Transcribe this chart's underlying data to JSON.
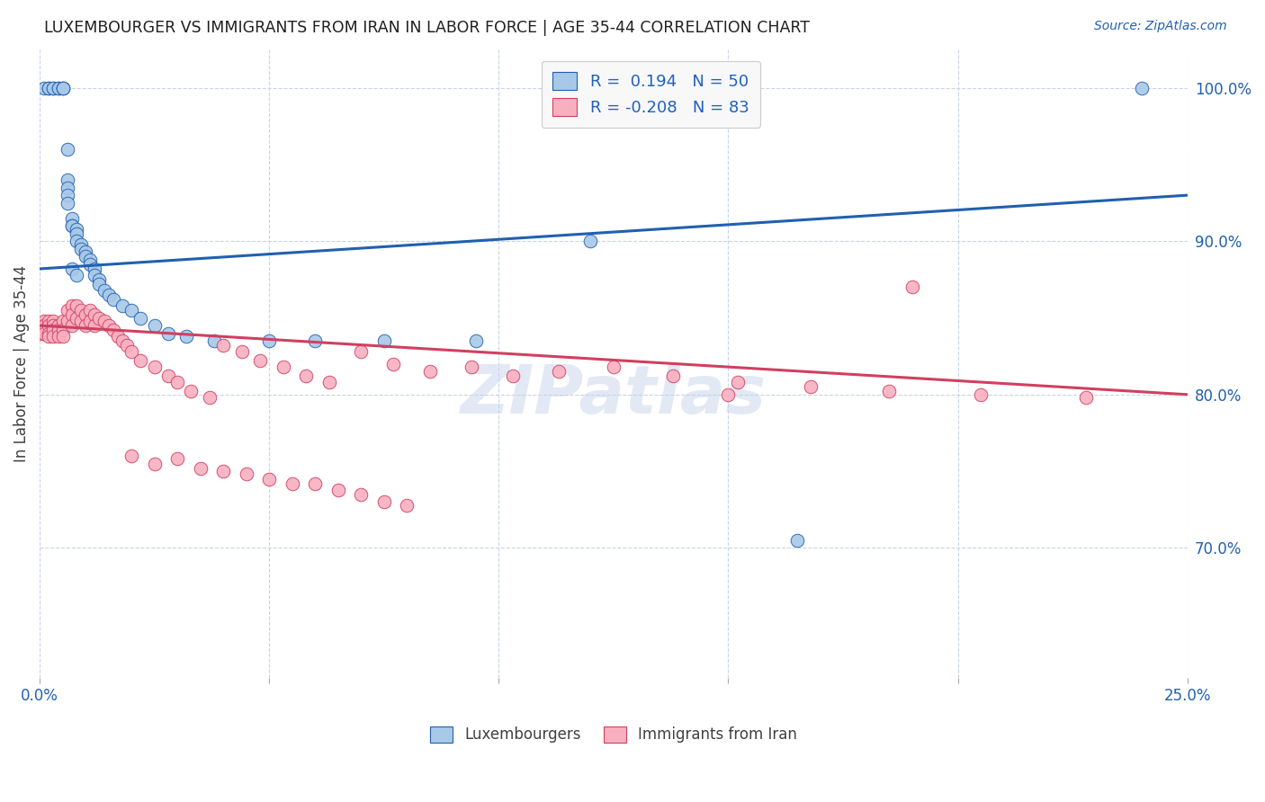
{
  "title": "LUXEMBOURGER VS IMMIGRANTS FROM IRAN IN LABOR FORCE | AGE 35-44 CORRELATION CHART",
  "source": "Source: ZipAtlas.com",
  "ylabel": "In Labor Force | Age 35-44",
  "xlim": [
    0.0,
    0.25
  ],
  "ylim": [
    0.615,
    1.025
  ],
  "yticks_right": [
    0.7,
    0.8,
    0.9,
    1.0
  ],
  "ytick_right_labels": [
    "70.0%",
    "80.0%",
    "90.0%",
    "100.0%"
  ],
  "blue_R": "0.194",
  "blue_N": "50",
  "pink_R": "-0.208",
  "pink_N": "83",
  "blue_color": "#A8C8E8",
  "pink_color": "#F8B0C0",
  "blue_line_color": "#2060B0",
  "pink_line_color": "#D04060",
  "legend_text_color": "#2060C0",
  "blue_line_x0": 0.0,
  "blue_line_y0": 0.882,
  "blue_line_x1": 0.25,
  "blue_line_y1": 0.93,
  "pink_line_x0": 0.0,
  "pink_line_y0": 0.845,
  "pink_line_x1": 0.25,
  "pink_line_y1": 0.8,
  "blue_scatter_x": [
    0.001,
    0.002,
    0.002,
    0.003,
    0.003,
    0.004,
    0.004,
    0.005,
    0.005,
    0.005,
    0.006,
    0.006,
    0.006,
    0.006,
    0.006,
    0.007,
    0.007,
    0.007,
    0.008,
    0.008,
    0.008,
    0.009,
    0.009,
    0.01,
    0.01,
    0.011,
    0.011,
    0.012,
    0.012,
    0.013,
    0.013,
    0.014,
    0.015,
    0.016,
    0.018,
    0.02,
    0.022,
    0.025,
    0.028,
    0.032,
    0.038,
    0.05,
    0.06,
    0.075,
    0.095,
    0.12,
    0.165,
    0.24,
    0.007,
    0.008
  ],
  "blue_scatter_y": [
    1.0,
    1.0,
    1.0,
    1.0,
    1.0,
    1.0,
    1.0,
    1.0,
    1.0,
    1.0,
    0.96,
    0.94,
    0.935,
    0.93,
    0.925,
    0.915,
    0.91,
    0.91,
    0.908,
    0.905,
    0.9,
    0.898,
    0.895,
    0.893,
    0.89,
    0.888,
    0.885,
    0.882,
    0.878,
    0.875,
    0.872,
    0.868,
    0.865,
    0.862,
    0.858,
    0.855,
    0.85,
    0.845,
    0.84,
    0.838,
    0.835,
    0.835,
    0.835,
    0.835,
    0.835,
    0.9,
    0.705,
    1.0,
    0.882,
    0.878
  ],
  "pink_scatter_x": [
    0.0,
    0.0,
    0.001,
    0.001,
    0.001,
    0.001,
    0.002,
    0.002,
    0.002,
    0.002,
    0.003,
    0.003,
    0.003,
    0.003,
    0.004,
    0.004,
    0.004,
    0.005,
    0.005,
    0.005,
    0.006,
    0.006,
    0.007,
    0.007,
    0.007,
    0.008,
    0.008,
    0.009,
    0.009,
    0.01,
    0.01,
    0.011,
    0.011,
    0.012,
    0.012,
    0.013,
    0.014,
    0.015,
    0.016,
    0.017,
    0.018,
    0.019,
    0.02,
    0.022,
    0.025,
    0.028,
    0.03,
    0.033,
    0.037,
    0.04,
    0.044,
    0.048,
    0.053,
    0.058,
    0.063,
    0.07,
    0.077,
    0.085,
    0.094,
    0.103,
    0.113,
    0.125,
    0.138,
    0.152,
    0.168,
    0.185,
    0.205,
    0.228,
    0.02,
    0.025,
    0.03,
    0.035,
    0.04,
    0.045,
    0.05,
    0.055,
    0.06,
    0.065,
    0.07,
    0.075,
    0.08,
    0.15,
    0.19
  ],
  "pink_scatter_y": [
    0.845,
    0.84,
    0.848,
    0.845,
    0.842,
    0.84,
    0.848,
    0.845,
    0.84,
    0.838,
    0.848,
    0.845,
    0.842,
    0.838,
    0.845,
    0.842,
    0.838,
    0.848,
    0.842,
    0.838,
    0.855,
    0.848,
    0.858,
    0.852,
    0.845,
    0.858,
    0.85,
    0.855,
    0.848,
    0.852,
    0.845,
    0.855,
    0.848,
    0.852,
    0.845,
    0.85,
    0.848,
    0.845,
    0.842,
    0.838,
    0.835,
    0.832,
    0.828,
    0.822,
    0.818,
    0.812,
    0.808,
    0.802,
    0.798,
    0.832,
    0.828,
    0.822,
    0.818,
    0.812,
    0.808,
    0.828,
    0.82,
    0.815,
    0.818,
    0.812,
    0.815,
    0.818,
    0.812,
    0.808,
    0.805,
    0.802,
    0.8,
    0.798,
    0.76,
    0.755,
    0.758,
    0.752,
    0.75,
    0.748,
    0.745,
    0.742,
    0.742,
    0.738,
    0.735,
    0.73,
    0.728,
    0.8,
    0.87
  ],
  "bg_color": "#FFFFFF",
  "grid_color": "#C8D4E8",
  "watermark": "ZIPatlas",
  "legend_bg": "#F8F8F8"
}
